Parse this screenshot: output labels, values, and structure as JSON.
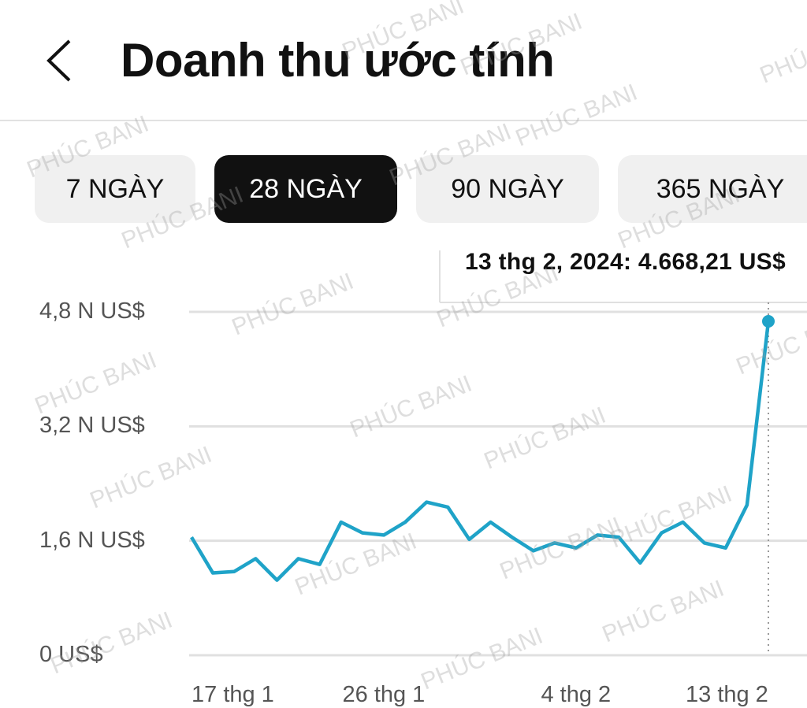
{
  "header": {
    "title": "Doanh thu ước tính",
    "back_icon": "chevron-left-icon"
  },
  "tabs": [
    {
      "label": "7 NGÀY",
      "active": false
    },
    {
      "label": "28 NGÀY",
      "active": true
    },
    {
      "label": "90 NGÀY",
      "active": false
    },
    {
      "label": "365 NGÀY",
      "active": false
    }
  ],
  "tooltip": "13 thg 2, 2024: 4.668,21 US$",
  "watermark": "PHÚC BANI",
  "colors": {
    "line": "#1fa3c8",
    "grid": "#e0e0e0",
    "active_tab": "#111111"
  },
  "chart_data": {
    "type": "line",
    "xlabel": "",
    "ylabel": "",
    "x_tick_labels": [
      "17 thg 1",
      "26 thg 1",
      "4 thg 2",
      "13 thg 2"
    ],
    "x_tick_days": [
      1,
      10,
      19,
      28
    ],
    "y_tick_labels": [
      "0 US$",
      "1,6 N US$",
      "3,2 N US$",
      "4,8 N US$"
    ],
    "y_ticks": [
      0,
      1600,
      3200,
      4800
    ],
    "ylim": [
      0,
      4800
    ],
    "grid": true,
    "dates": [
      "17 thg 1",
      "18 thg 1",
      "19 thg 1",
      "20 thg 1",
      "21 thg 1",
      "22 thg 1",
      "23 thg 1",
      "24 thg 1",
      "25 thg 1",
      "26 thg 1",
      "27 thg 1",
      "28 thg 1",
      "29 thg 1",
      "30 thg 1",
      "31 thg 1",
      "1 thg 2",
      "2 thg 2",
      "3 thg 2",
      "4 thg 2",
      "5 thg 2",
      "6 thg 2",
      "7 thg 2",
      "8 thg 2",
      "9 thg 2",
      "10 thg 2",
      "11 thg 2",
      "12 thg 2",
      "13 thg 2"
    ],
    "values": [
      1650,
      1150,
      1170,
      1350,
      1050,
      1350,
      1270,
      1860,
      1710,
      1680,
      1860,
      2140,
      2070,
      1620,
      1860,
      1650,
      1460,
      1570,
      1500,
      1680,
      1650,
      1290,
      1710,
      1860,
      1570,
      1500,
      2100,
      4668.21
    ],
    "highlighted": {
      "date": "13 thg 2, 2024",
      "value": 4668.21
    }
  }
}
